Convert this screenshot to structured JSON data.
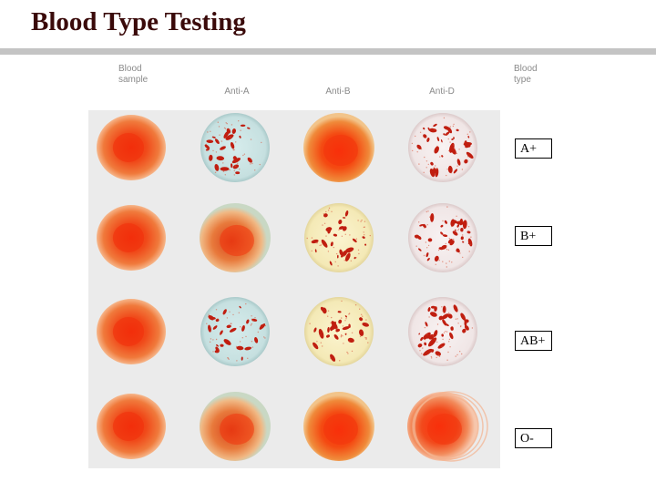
{
  "title": "Blood Type Testing",
  "headers": {
    "blood_sample": [
      "Blood",
      "sample"
    ],
    "anti_a": "Anti-A",
    "anti_b": "Anti-B",
    "anti_d": "Anti-D",
    "blood_type": [
      "Blood",
      "type"
    ]
  },
  "results": [
    "A+",
    "B+",
    "AB+",
    "O-"
  ],
  "colors": {
    "title": "#3a0a0a",
    "rule": "#c4c4c4",
    "header_text": "#8a8a8a",
    "anti_a_reagent": "#cfe6e6",
    "anti_b_reagent": "#f7efc2",
    "anti_d_reagent": "#f4ecec",
    "blood_red": "#e83a12",
    "clump": "#c01e10"
  },
  "rows": [
    {
      "type": "A+",
      "wells": [
        "sample",
        "clumped",
        "smooth",
        "clumped"
      ]
    },
    {
      "type": "B+",
      "wells": [
        "sample",
        "smooth",
        "clumped",
        "clumped"
      ]
    },
    {
      "type": "AB+",
      "wells": [
        "sample",
        "clumped",
        "clumped",
        "clumped"
      ]
    },
    {
      "type": "O-",
      "wells": [
        "sample",
        "smooth",
        "smooth",
        "smooth"
      ]
    }
  ]
}
